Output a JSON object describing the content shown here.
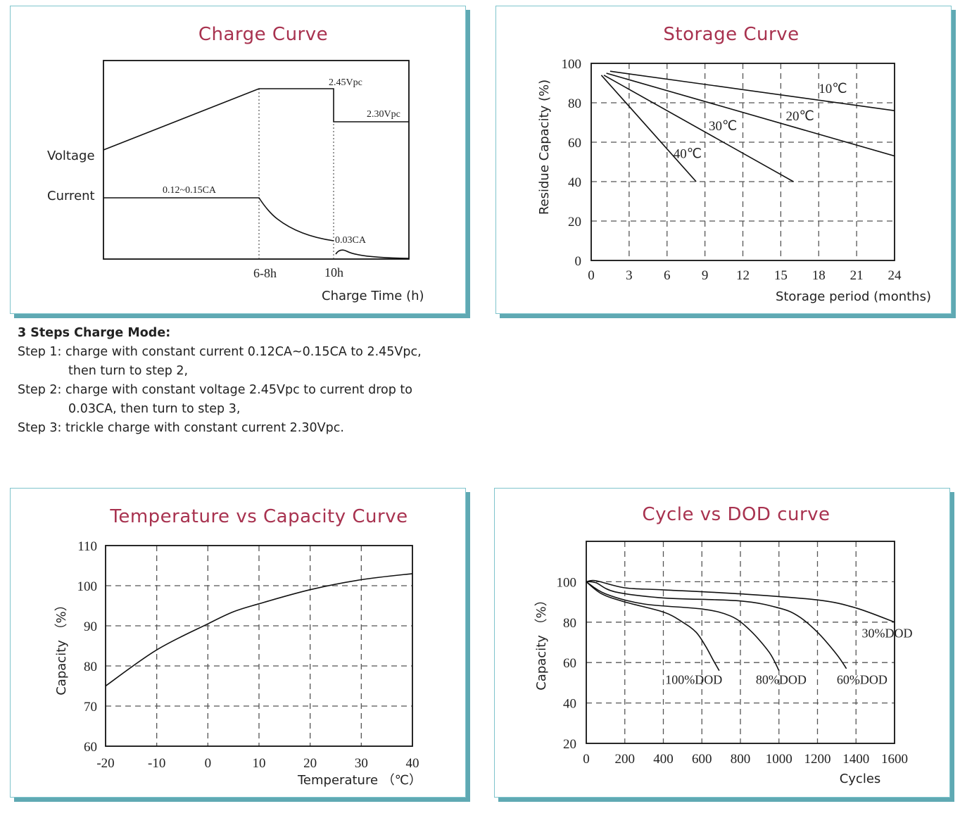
{
  "charge_curve": {
    "title": "Charge Curve",
    "voltage_label": "Voltage",
    "current_label": "Current",
    "v_high_label": "2.45Vpc",
    "v_float_label": "2.30Vpc",
    "i_const_label": "0.12~0.15CA",
    "i_end_label": "0.03CA",
    "t1_label": "6-8h",
    "t2_label": "10h",
    "xlabel": "Charge Time (h)"
  },
  "storage_curve": {
    "title": "Storage Curve",
    "ylabel": "Residue Capacity (%)",
    "xlabel": "Storage period (months)",
    "xticks": [
      "0",
      "3",
      "6",
      "9",
      "12",
      "15",
      "18",
      "21",
      "24"
    ],
    "yticks": [
      "0",
      "20",
      "40",
      "60",
      "80",
      "100"
    ],
    "series_labels": [
      "10℃",
      "20℃",
      "30℃",
      "40℃"
    ]
  },
  "temp_curve": {
    "title": "Temperature vs Capacity Curve",
    "ylabel": "Capacity （%）",
    "xlabel": "Temperature （℃）",
    "xticks": [
      "-20",
      "-10",
      "0",
      "10",
      "20",
      "30",
      "40"
    ],
    "yticks": [
      "60",
      "70",
      "80",
      "90",
      "100",
      "110"
    ]
  },
  "cycle_curve": {
    "title": "Cycle vs DOD curve",
    "ylabel": "Capacity （%）",
    "xlabel": "Cycles",
    "xticks": [
      "0",
      "200",
      "400",
      "600",
      "800",
      "1000",
      "1200",
      "1400",
      "1600"
    ],
    "yticks": [
      "20",
      "40",
      "60",
      "80",
      "100"
    ],
    "series_labels": [
      "30%DOD",
      "60%DOD",
      "80%DOD",
      "100%DOD"
    ]
  },
  "steps": {
    "heading": "3 Steps Charge Mode:",
    "step1_a": "Step 1: charge with constant current 0.12CA~0.15CA to 2.45Vpc,",
    "step1_b": "then turn to step 2,",
    "step2_a": "Step 2: charge with constant voltage 2.45Vpc to current drop to",
    "step2_b": "0.03CA, then turn to step 3,",
    "step3": "Step 3: trickle charge  with  constant current 2.30Vpc."
  },
  "chart_data": [
    {
      "type": "line",
      "title": "Charge Curve",
      "xlabel": "Charge Time (h)",
      "x_markers": [
        "6-8h",
        "10h"
      ],
      "series": [
        {
          "name": "Voltage",
          "points": [
            [
              "0",
              "start"
            ],
            [
              "6-8h",
              "2.45Vpc"
            ],
            [
              "10h",
              "2.45Vpc"
            ],
            [
              "10h",
              "2.30Vpc"
            ],
            [
              "end",
              "2.30Vpc"
            ]
          ]
        },
        {
          "name": "Current",
          "points": [
            [
              "0",
              "0.12~0.15CA"
            ],
            [
              "6-8h",
              "0.12~0.15CA"
            ],
            [
              "10h",
              "0.03CA"
            ],
            [
              "end",
              "~0"
            ]
          ]
        }
      ]
    },
    {
      "type": "line",
      "title": "Storage Curve",
      "xlabel": "Storage period (months)",
      "ylabel": "Residue Capacity (%)",
      "xlim": [
        0,
        24
      ],
      "ylim": [
        0,
        100
      ],
      "series": [
        {
          "name": "10℃",
          "x": [
            1.5,
            24
          ],
          "y": [
            96,
            76
          ]
        },
        {
          "name": "20℃",
          "x": [
            1.2,
            24
          ],
          "y": [
            95,
            53
          ]
        },
        {
          "name": "30℃",
          "x": [
            1.0,
            16
          ],
          "y": [
            94,
            40
          ]
        },
        {
          "name": "40℃",
          "x": [
            0.8,
            8.3
          ],
          "y": [
            94,
            40
          ]
        }
      ]
    },
    {
      "type": "line",
      "title": "Temperature vs Capacity Curve",
      "xlabel": "Temperature （℃）",
      "ylabel": "Capacity （%）",
      "xlim": [
        -20,
        40
      ],
      "ylim": [
        60,
        110
      ],
      "series": [
        {
          "name": "Capacity",
          "x": [
            -20,
            -10,
            0,
            5,
            10,
            20,
            30,
            40
          ],
          "y": [
            75,
            84,
            90.5,
            93.5,
            95.5,
            99,
            101.5,
            103
          ]
        }
      ]
    },
    {
      "type": "line",
      "title": "Cycle vs DOD curve",
      "xlabel": "Cycles",
      "ylabel": "Capacity （%）",
      "xlim": [
        0,
        1600
      ],
      "ylim": [
        20,
        120
      ],
      "series": [
        {
          "name": "30%DOD",
          "x": [
            0,
            50,
            200,
            400,
            800,
            1200,
            1400,
            1600
          ],
          "y": [
            100,
            100.5,
            97,
            96,
            94,
            91,
            87,
            80
          ]
        },
        {
          "name": "60%DOD",
          "x": [
            0,
            50,
            150,
            400,
            800,
            1000,
            1100,
            1200,
            1300,
            1350
          ],
          "y": [
            100,
            99.5,
            95,
            92,
            90.5,
            87,
            83,
            75,
            64,
            57
          ]
        },
        {
          "name": "80%DOD",
          "x": [
            0,
            100,
            300,
            600,
            750,
            850,
            950,
            1000
          ],
          "y": [
            100,
            94,
            89,
            86.5,
            83,
            76,
            65,
            56
          ]
        },
        {
          "name": "100%DOD",
          "x": [
            0,
            80,
            200,
            400,
            500,
            570,
            620,
            660,
            690
          ],
          "y": [
            100,
            94,
            90,
            85,
            80,
            75,
            68,
            61,
            56
          ]
        }
      ]
    }
  ]
}
